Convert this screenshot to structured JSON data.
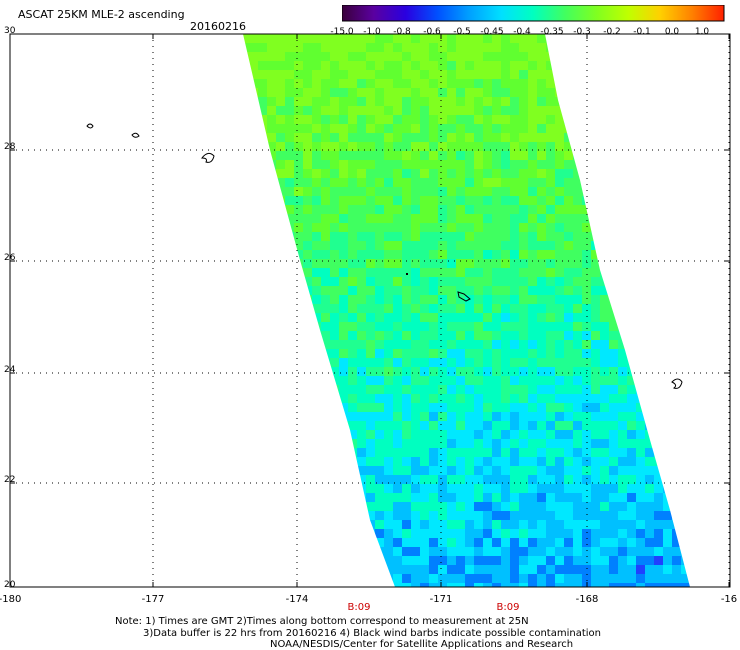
{
  "header": {
    "title": "ASCAT 25KM MLE-2 ascending",
    "date": "20160216"
  },
  "colorbar": {
    "labels": [
      "-15.0",
      "-1.0",
      "-0.8",
      "-0.6",
      "-0.5",
      "-0.45",
      "-0.4",
      "-0.35",
      "-0.3",
      "-0.2",
      "-0.1",
      "0.0",
      "1.0"
    ],
    "colors": [
      "#3a003a",
      "#5a00a0",
      "#2a00e0",
      "#0050ff",
      "#00a0ff",
      "#00e0ff",
      "#00ffc0",
      "#40ff60",
      "#80ff20",
      "#c0ff00",
      "#ffd000",
      "#ff8000",
      "#ff2000"
    ]
  },
  "map": {
    "y_labels": [
      "30",
      "28",
      "26",
      "24",
      "22",
      "20"
    ],
    "x_labels": [
      "-180",
      "-177",
      "-174",
      "-171",
      "-168",
      "-16"
    ],
    "times": [
      "B:09",
      "B:09"
    ]
  },
  "notes": {
    "line1": "Note: 1) Times are GMT 2)Times along bottom correspond to measurement at 25N",
    "line2": "3)Data buffer is 22 hrs from 20160216 4) Black wind barbs indicate possible contamination",
    "line3": "NOAA/NESDIS/Center for Satellite Applications and Research"
  }
}
